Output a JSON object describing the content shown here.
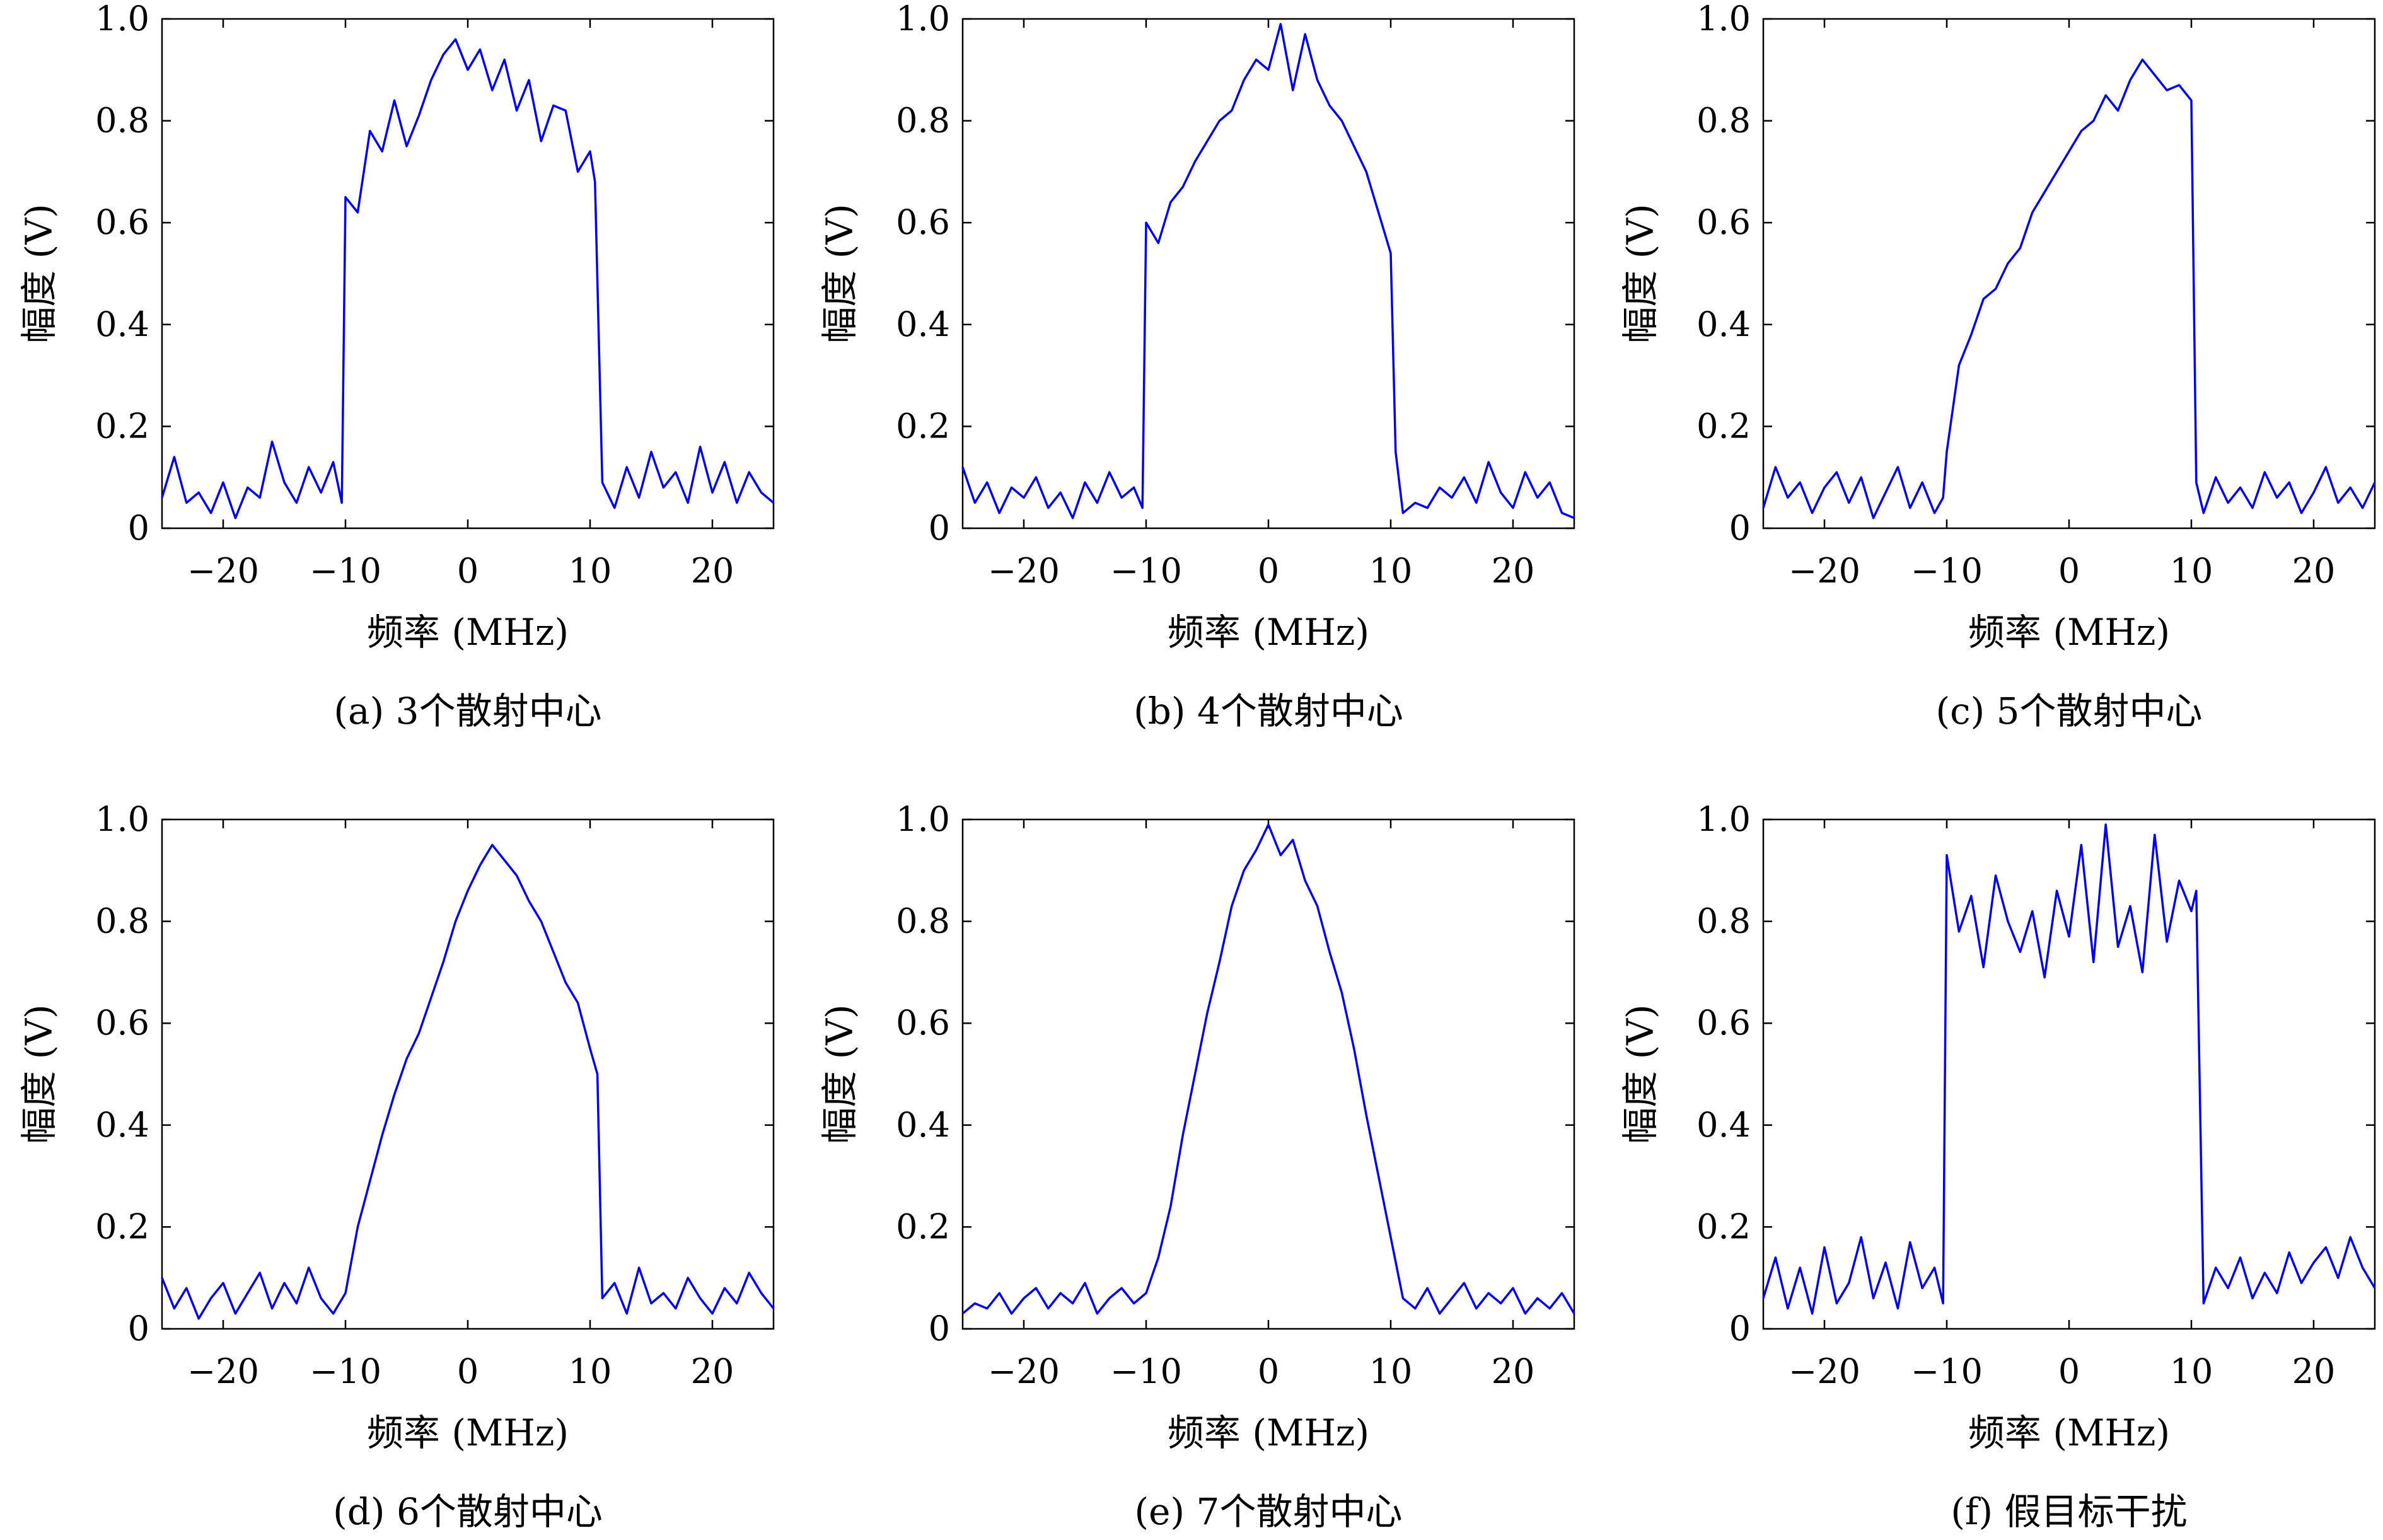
{
  "series_color": "#0000ee",
  "chart_data": [
    {
      "type": "line",
      "caption": "(a) 3个散射中心",
      "xlabel": "频率 (MHz)",
      "ylabel": "幅度 (V)",
      "xlim": [
        -25,
        25
      ],
      "ylim": [
        0,
        1.0
      ],
      "xticks": [
        "−20",
        "−10",
        "0",
        "10",
        "20"
      ],
      "yticks": [
        "0",
        "0.2",
        "0.4",
        "0.6",
        "0.8",
        "1.0"
      ],
      "grid": false,
      "x": [
        -25,
        -24,
        -23,
        -22,
        -21,
        -20,
        -19,
        -18,
        -17,
        -16,
        -15,
        -14,
        -13,
        -12,
        -11,
        -10.3,
        -10,
        -9,
        -8,
        -7,
        -6,
        -5,
        -4,
        -3,
        -2,
        -1,
        0,
        1,
        2,
        3,
        4,
        5,
        6,
        7,
        8,
        9,
        10,
        10.4,
        11,
        12,
        13,
        14,
        15,
        16,
        17,
        18,
        19,
        20,
        21,
        22,
        23,
        24,
        25
      ],
      "y": [
        0.06,
        0.14,
        0.05,
        0.07,
        0.03,
        0.09,
        0.02,
        0.08,
        0.06,
        0.17,
        0.09,
        0.05,
        0.12,
        0.07,
        0.13,
        0.05,
        0.65,
        0.62,
        0.78,
        0.74,
        0.84,
        0.75,
        0.81,
        0.88,
        0.93,
        0.96,
        0.9,
        0.94,
        0.86,
        0.92,
        0.82,
        0.88,
        0.76,
        0.83,
        0.82,
        0.7,
        0.74,
        0.68,
        0.09,
        0.04,
        0.12,
        0.06,
        0.15,
        0.08,
        0.11,
        0.05,
        0.16,
        0.07,
        0.13,
        0.05,
        0.11,
        0.07,
        0.05
      ]
    },
    {
      "type": "line",
      "caption": "(b) 4个散射中心",
      "xlabel": "频率 (MHz)",
      "ylabel": "幅度 (V)",
      "xlim": [
        -25,
        25
      ],
      "ylim": [
        0,
        1.0
      ],
      "xticks": [
        "−20",
        "−10",
        "0",
        "10",
        "20"
      ],
      "yticks": [
        "0",
        "0.2",
        "0.4",
        "0.6",
        "0.8",
        "1.0"
      ],
      "grid": false,
      "x": [
        -25,
        -24,
        -23,
        -22,
        -21,
        -20,
        -19,
        -18,
        -17,
        -16,
        -15,
        -14,
        -13,
        -12,
        -11,
        -10.3,
        -10,
        -9,
        -8,
        -7,
        -6,
        -5,
        -4,
        -3,
        -2,
        -1,
        0,
        1,
        2,
        3,
        4,
        5,
        6,
        7,
        8,
        9,
        10,
        10.4,
        11,
        12,
        13,
        14,
        15,
        16,
        17,
        18,
        19,
        20,
        21,
        22,
        23,
        24,
        25
      ],
      "y": [
        0.12,
        0.05,
        0.09,
        0.03,
        0.08,
        0.06,
        0.1,
        0.04,
        0.07,
        0.02,
        0.09,
        0.05,
        0.11,
        0.06,
        0.08,
        0.04,
        0.6,
        0.56,
        0.64,
        0.67,
        0.72,
        0.76,
        0.8,
        0.82,
        0.88,
        0.92,
        0.9,
        0.99,
        0.86,
        0.97,
        0.88,
        0.83,
        0.8,
        0.75,
        0.7,
        0.62,
        0.54,
        0.15,
        0.03,
        0.05,
        0.04,
        0.08,
        0.06,
        0.1,
        0.05,
        0.13,
        0.07,
        0.04,
        0.11,
        0.06,
        0.09,
        0.03,
        0.02
      ]
    },
    {
      "type": "line",
      "caption": "(c) 5个散射中心",
      "xlabel": "频率 (MHz)",
      "ylabel": "幅度 (V)",
      "xlim": [
        -25,
        25
      ],
      "ylim": [
        0,
        1.0
      ],
      "xticks": [
        "−20",
        "−10",
        "0",
        "10",
        "20"
      ],
      "yticks": [
        "0",
        "0.2",
        "0.4",
        "0.6",
        "0.8",
        "1.0"
      ],
      "grid": false,
      "x": [
        -25,
        -24,
        -23,
        -22,
        -21,
        -20,
        -19,
        -18,
        -17,
        -16,
        -15,
        -14,
        -13,
        -12,
        -11,
        -10.3,
        -10,
        -9,
        -8,
        -7,
        -6,
        -5,
        -4,
        -3,
        -2,
        -1,
        0,
        1,
        2,
        3,
        4,
        5,
        6,
        7,
        8,
        9,
        10,
        10.4,
        11,
        12,
        13,
        14,
        15,
        16,
        17,
        18,
        19,
        20,
        21,
        22,
        23,
        24,
        25
      ],
      "y": [
        0.04,
        0.12,
        0.06,
        0.09,
        0.03,
        0.08,
        0.11,
        0.05,
        0.1,
        0.02,
        0.07,
        0.12,
        0.04,
        0.09,
        0.03,
        0.06,
        0.15,
        0.32,
        0.38,
        0.45,
        0.47,
        0.52,
        0.55,
        0.62,
        0.66,
        0.7,
        0.74,
        0.78,
        0.8,
        0.85,
        0.82,
        0.88,
        0.92,
        0.89,
        0.86,
        0.87,
        0.84,
        0.09,
        0.03,
        0.1,
        0.05,
        0.08,
        0.04,
        0.11,
        0.06,
        0.09,
        0.03,
        0.07,
        0.12,
        0.05,
        0.08,
        0.04,
        0.09
      ]
    },
    {
      "type": "line",
      "caption": "(d) 6个散射中心",
      "xlabel": "频率 (MHz)",
      "ylabel": "幅度 (V)",
      "xlim": [
        -25,
        25
      ],
      "ylim": [
        0,
        1.0
      ],
      "xticks": [
        "−20",
        "−10",
        "0",
        "10",
        "20"
      ],
      "yticks": [
        "0",
        "0.2",
        "0.4",
        "0.6",
        "0.8",
        "1.0"
      ],
      "grid": false,
      "x": [
        -25,
        -24,
        -23,
        -22,
        -21,
        -20,
        -19,
        -18,
        -17,
        -16,
        -15,
        -14,
        -13,
        -12,
        -11,
        -10,
        -9,
        -8,
        -7,
        -6,
        -5,
        -4,
        -3,
        -2,
        -1,
        0,
        1,
        2,
        3,
        4,
        5,
        6,
        7,
        8,
        9,
        10,
        10.6,
        11,
        12,
        13,
        14,
        15,
        16,
        17,
        18,
        19,
        20,
        21,
        22,
        23,
        24,
        25
      ],
      "y": [
        0.1,
        0.04,
        0.08,
        0.02,
        0.06,
        0.09,
        0.03,
        0.07,
        0.11,
        0.04,
        0.09,
        0.05,
        0.12,
        0.06,
        0.03,
        0.07,
        0.2,
        0.29,
        0.38,
        0.46,
        0.53,
        0.58,
        0.65,
        0.72,
        0.8,
        0.86,
        0.91,
        0.95,
        0.92,
        0.89,
        0.84,
        0.8,
        0.74,
        0.68,
        0.64,
        0.55,
        0.5,
        0.06,
        0.09,
        0.03,
        0.12,
        0.05,
        0.07,
        0.04,
        0.1,
        0.06,
        0.03,
        0.08,
        0.05,
        0.11,
        0.07,
        0.04
      ]
    },
    {
      "type": "line",
      "caption": "(e) 7个散射中心",
      "xlabel": "频率 (MHz)",
      "ylabel": "幅度 (V)",
      "xlim": [
        -25,
        25
      ],
      "ylim": [
        0,
        1.0
      ],
      "xticks": [
        "−20",
        "−10",
        "0",
        "10",
        "20"
      ],
      "yticks": [
        "0",
        "0.2",
        "0.4",
        "0.6",
        "0.8",
        "1.0"
      ],
      "grid": false,
      "x": [
        -25,
        -24,
        -23,
        -22,
        -21,
        -20,
        -19,
        -18,
        -17,
        -16,
        -15,
        -14,
        -13,
        -12,
        -11,
        -10,
        -9,
        -8,
        -7,
        -6,
        -5,
        -4,
        -3,
        -2,
        -1,
        0,
        1,
        2,
        3,
        4,
        5,
        6,
        7,
        8,
        9,
        10,
        11,
        12,
        13,
        14,
        15,
        16,
        17,
        18,
        19,
        20,
        21,
        22,
        23,
        24,
        25
      ],
      "y": [
        0.03,
        0.05,
        0.04,
        0.07,
        0.03,
        0.06,
        0.08,
        0.04,
        0.07,
        0.05,
        0.09,
        0.03,
        0.06,
        0.08,
        0.05,
        0.07,
        0.14,
        0.24,
        0.38,
        0.5,
        0.62,
        0.72,
        0.83,
        0.9,
        0.94,
        0.99,
        0.93,
        0.96,
        0.88,
        0.83,
        0.74,
        0.66,
        0.55,
        0.42,
        0.3,
        0.18,
        0.06,
        0.04,
        0.08,
        0.03,
        0.06,
        0.09,
        0.04,
        0.07,
        0.05,
        0.08,
        0.03,
        0.06,
        0.04,
        0.07,
        0.03
      ]
    },
    {
      "type": "line",
      "caption": "(f) 假目标干扰",
      "xlabel": "频率 (MHz)",
      "ylabel": "幅度 (V)",
      "xlim": [
        -25,
        25
      ],
      "ylim": [
        0,
        1.0
      ],
      "xticks": [
        "−20",
        "−10",
        "0",
        "10",
        "20"
      ],
      "yticks": [
        "0",
        "0.2",
        "0.4",
        "0.6",
        "0.8",
        "1.0"
      ],
      "grid": false,
      "x": [
        -25,
        -24,
        -23,
        -22,
        -21,
        -20,
        -19,
        -18,
        -17,
        -16,
        -15,
        -14,
        -13,
        -12,
        -11,
        -10.3,
        -10,
        -9,
        -8,
        -7,
        -6,
        -5,
        -4,
        -3,
        -2,
        -1,
        0,
        1,
        2,
        3,
        4,
        5,
        6,
        7,
        8,
        9,
        10,
        10.4,
        11,
        12,
        13,
        14,
        15,
        16,
        17,
        18,
        19,
        20,
        21,
        22,
        23,
        24,
        25
      ],
      "y": [
        0.06,
        0.14,
        0.04,
        0.12,
        0.03,
        0.16,
        0.05,
        0.09,
        0.18,
        0.06,
        0.13,
        0.04,
        0.17,
        0.08,
        0.12,
        0.05,
        0.93,
        0.78,
        0.85,
        0.71,
        0.89,
        0.8,
        0.74,
        0.82,
        0.69,
        0.86,
        0.77,
        0.95,
        0.72,
        0.99,
        0.75,
        0.83,
        0.7,
        0.97,
        0.76,
        0.88,
        0.82,
        0.86,
        0.05,
        0.12,
        0.08,
        0.14,
        0.06,
        0.11,
        0.07,
        0.15,
        0.09,
        0.13,
        0.16,
        0.1,
        0.18,
        0.12,
        0.08
      ]
    }
  ]
}
